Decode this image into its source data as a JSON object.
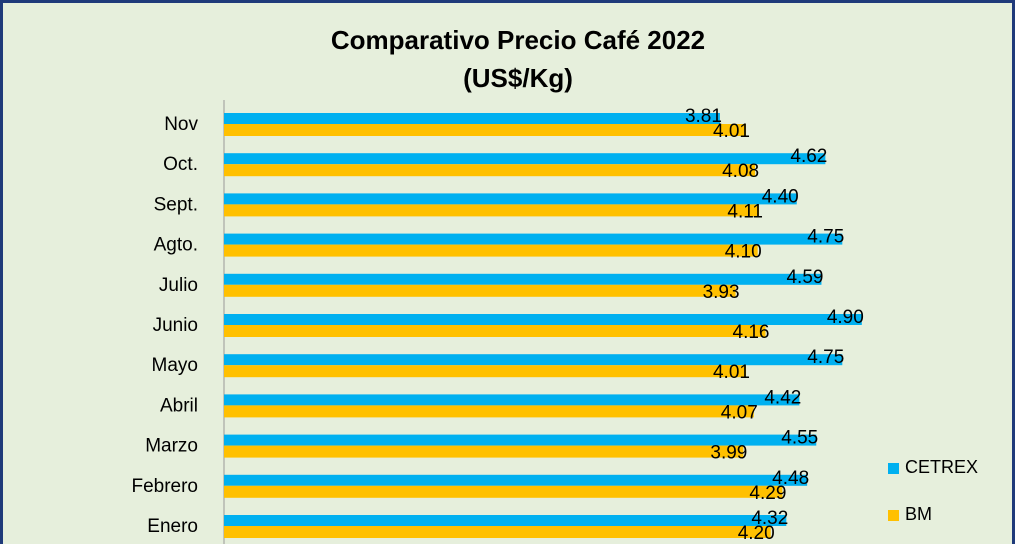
{
  "chart_data": {
    "type": "hbar",
    "title": "Comparativo Precio Café 2022",
    "subtitle": "(US$/Kg)",
    "categories": [
      "Enero",
      "Febrero",
      "Marzo",
      "Abril",
      "Mayo",
      "Junio",
      "Julio",
      "Agto.",
      "Sept.",
      "Oct.",
      "Nov"
    ],
    "series": [
      {
        "name": "CETREX",
        "color": "#00b0f0",
        "values": [
          4.32,
          4.48,
          4.55,
          4.42,
          4.75,
          4.9,
          4.59,
          4.75,
          4.4,
          4.62,
          3.81
        ],
        "value_labels": [
          "4.32",
          "4.48",
          "4.55",
          "4.42",
          "4.75",
          "4.90",
          "4.59",
          "4.75",
          "4.40",
          "4.62",
          "3.81"
        ]
      },
      {
        "name": "BM",
        "color": "#ffc000",
        "values": [
          4.2,
          4.29,
          3.99,
          4.07,
          4.01,
          4.16,
          3.93,
          4.1,
          4.11,
          4.08,
          4.01
        ],
        "value_labels": [
          "4.20",
          "4.29",
          "3.99",
          "4.07",
          "4.01",
          "4.16",
          "3.93",
          "4.10",
          "4.11",
          "4.08",
          "4.01"
        ]
      }
    ],
    "xlim": [
      0,
      6
    ],
    "legend": "right"
  }
}
